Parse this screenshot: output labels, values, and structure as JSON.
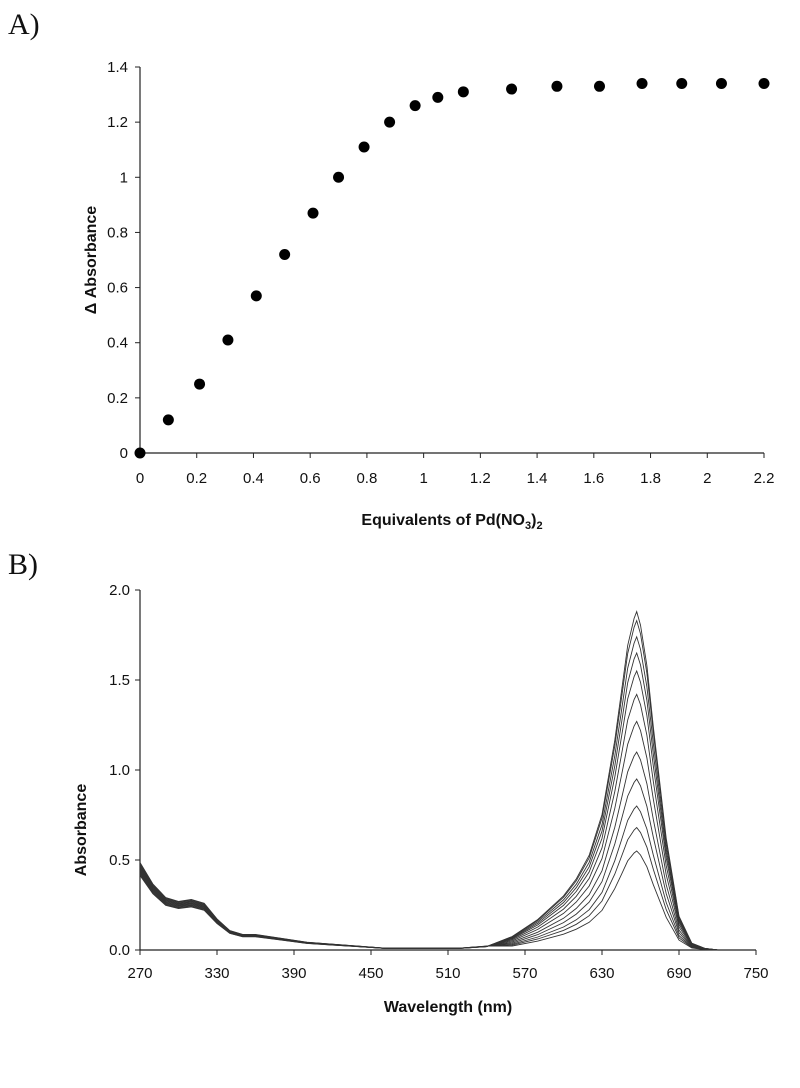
{
  "panels": {
    "a_label": "A)",
    "b_label": "B)"
  },
  "chart_data": [
    {
      "type": "scatter",
      "panel": "A)",
      "xlabel_main": "Equivalents of Pd(NO",
      "xlabel_sub1": "3",
      "xlabel_mid": ")",
      "xlabel_sub2": "2",
      "ylabel": "Δ Absorbance",
      "xlim": [
        0,
        2.2
      ],
      "ylim": [
        0,
        1.4
      ],
      "xticks": [
        "0",
        "0.2",
        "0.4",
        "0.6",
        "0.8",
        "1",
        "1.2",
        "1.4",
        "1.6",
        "1.8",
        "2",
        "2.2"
      ],
      "yticks": [
        "0",
        "0.2",
        "0.4",
        "0.6",
        "0.8",
        "1",
        "1.2",
        "1.4"
      ],
      "marker_color": "#000000",
      "x": [
        0,
        0.1,
        0.21,
        0.31,
        0.41,
        0.51,
        0.61,
        0.7,
        0.79,
        0.88,
        0.97,
        1.05,
        1.14,
        1.31,
        1.47,
        1.62,
        1.77,
        1.91,
        2.05,
        2.2
      ],
      "y": [
        0,
        0.12,
        0.25,
        0.41,
        0.57,
        0.72,
        0.87,
        1.0,
        1.11,
        1.2,
        1.26,
        1.29,
        1.31,
        1.32,
        1.33,
        1.33,
        1.34,
        1.34,
        1.34,
        1.34
      ]
    },
    {
      "type": "line",
      "panel": "B)",
      "xlabel": "Wavelength (nm)",
      "ylabel": "Absorbance",
      "xlim": [
        270,
        750
      ],
      "ylim": [
        0,
        2.0
      ],
      "xticks": [
        "270",
        "330",
        "390",
        "450",
        "510",
        "570",
        "630",
        "690",
        "750"
      ],
      "yticks": [
        "0.0",
        "0.5",
        "1.0",
        "1.5",
        "2.0"
      ],
      "line_color": "#333333",
      "peak_wavelength": 657,
      "peak_heights": [
        0.55,
        0.68,
        0.8,
        0.95,
        1.1,
        1.27,
        1.42,
        1.55,
        1.65,
        1.74,
        1.83,
        1.88
      ],
      "x": [
        270,
        280,
        290,
        300,
        310,
        320,
        330,
        340,
        350,
        360,
        380,
        400,
        420,
        440,
        460,
        480,
        500,
        520,
        540,
        560,
        580,
        600,
        610,
        620,
        630,
        640,
        645,
        650,
        655,
        657,
        660,
        665,
        670,
        680,
        690,
        700,
        710,
        720
      ],
      "shape": [
        0.45,
        0.34,
        0.27,
        0.25,
        0.26,
        0.24,
        0.16,
        0.1,
        0.08,
        0.08,
        0.06,
        0.04,
        0.03,
        0.02,
        0.01,
        0.01,
        0.01,
        0.01,
        0.02,
        0.04,
        0.09,
        0.16,
        0.21,
        0.28,
        0.4,
        0.62,
        0.76,
        0.9,
        0.98,
        1.0,
        0.96,
        0.84,
        0.66,
        0.33,
        0.1,
        0.02,
        0.005,
        0.0
      ]
    }
  ]
}
